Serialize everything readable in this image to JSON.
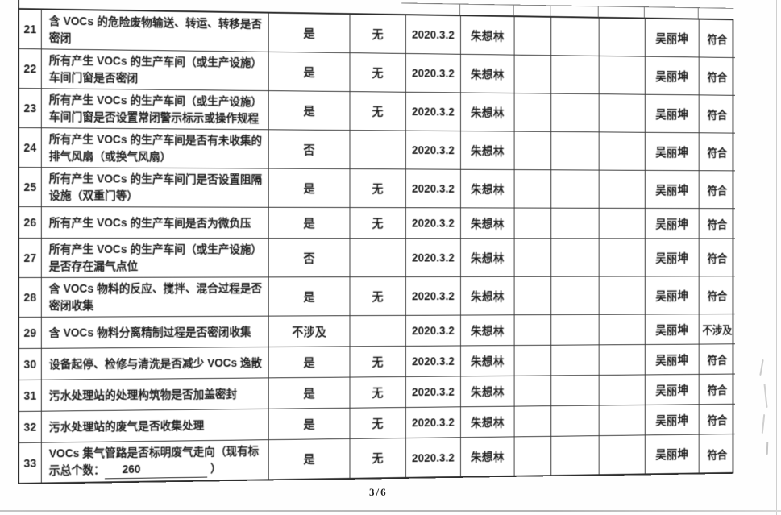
{
  "footer": {
    "page_indicator": "3/6"
  },
  "colors": {
    "paper": "#ffffff",
    "ink": "#1f1f1f",
    "table_line": "#3a3a3a"
  },
  "table": {
    "rows": [
      {
        "no": "21",
        "question": "含 VOCs 的危险废物输送、转运、转移是否密闭",
        "self_check": "是",
        "problem": "无",
        "date": "2020.3.2",
        "checker": "朱想林",
        "extra1": "",
        "extra2": "",
        "extra3": "",
        "reviewer": "吴丽坤",
        "conclusion": "符合"
      },
      {
        "no": "22",
        "question": "所有产生 VOCs 的生产车间（或生产设施）车间门窗是否密闭",
        "self_check": "是",
        "problem": "无",
        "date": "2020.3.2",
        "checker": "朱想林",
        "extra1": "",
        "extra2": "",
        "extra3": "",
        "reviewer": "吴丽坤",
        "conclusion": "符合"
      },
      {
        "no": "23",
        "question": "所有产生 VOCs 的生产车间（或生产设施）车间门窗是否设置常闭警示标示或操作规程",
        "self_check": "是",
        "problem": "无",
        "date": "2020.3.2",
        "checker": "朱想林",
        "extra1": "",
        "extra2": "",
        "extra3": "",
        "reviewer": "吴丽坤",
        "conclusion": "符合"
      },
      {
        "no": "24",
        "question": "所有产生 VOCs 的生产车间是否有未收集的排气风扇（或换气风扇）",
        "self_check": "否",
        "problem": "",
        "date": "2020.3.2",
        "checker": "朱想林",
        "extra1": "",
        "extra2": "",
        "extra3": "",
        "reviewer": "吴丽坤",
        "conclusion": "符合"
      },
      {
        "no": "25",
        "question": "所有产生 VOCs 的生产车间门是否设置阻隔设施（双重门等）",
        "self_check": "是",
        "problem": "无",
        "date": "2020.3.2",
        "checker": "朱想林",
        "extra1": "",
        "extra2": "",
        "extra3": "",
        "reviewer": "吴丽坤",
        "conclusion": "符合"
      },
      {
        "no": "26",
        "question": "所有产生 VOCs 的生产车间是否为微负压",
        "self_check": "是",
        "problem": "无",
        "date": "2020.3.2",
        "checker": "朱想林",
        "extra1": "",
        "extra2": "",
        "extra3": "",
        "reviewer": "吴丽坤",
        "conclusion": "符合"
      },
      {
        "no": "27",
        "question": "所有产生 VOCs 的生产车间（或生产设施）是否存在漏气点位",
        "self_check": "否",
        "problem": "",
        "date": "2020.3.2",
        "checker": "朱想林",
        "extra1": "",
        "extra2": "",
        "extra3": "",
        "reviewer": "吴丽坤",
        "conclusion": "符合"
      },
      {
        "no": "28",
        "question": "含 VOCs 物料的反应、搅拌、混合过程是否密闭收集",
        "self_check": "是",
        "problem": "无",
        "date": "2020.3.2",
        "checker": "朱想林",
        "extra1": "",
        "extra2": "",
        "extra3": "",
        "reviewer": "吴丽坤",
        "conclusion": "符合"
      },
      {
        "no": "29",
        "question": "含 VOCs 物料分离精制过程是否密闭收集",
        "self_check": "不涉及",
        "problem": "",
        "date": "2020.3.2",
        "checker": "朱想林",
        "extra1": "",
        "extra2": "",
        "extra3": "",
        "reviewer": "吴丽坤",
        "conclusion": "不涉及"
      },
      {
        "no": "30",
        "question": "设备起停、检修与清洗是否减少 VOCs 逸散",
        "self_check": "是",
        "problem": "无",
        "date": "2020.3.2",
        "checker": "朱想林",
        "extra1": "",
        "extra2": "",
        "extra3": "",
        "reviewer": "吴丽坤",
        "conclusion": "符合"
      },
      {
        "no": "31",
        "question": "污水处理站的处理构筑物是否加盖密封",
        "self_check": "是",
        "problem": "无",
        "date": "2020.3.2",
        "checker": "朱想林",
        "extra1": "",
        "extra2": "",
        "extra3": "",
        "reviewer": "吴丽坤",
        "conclusion": "符合"
      },
      {
        "no": "32",
        "question": "污水处理站的废气是否收集处理",
        "self_check": "是",
        "problem": "无",
        "date": "2020.3.2",
        "checker": "朱想林",
        "extra1": "",
        "extra2": "",
        "extra3": "",
        "reviewer": "吴丽坤",
        "conclusion": "符合"
      },
      {
        "no": "33",
        "question_prefix": "VOCs 集气管路是否标明废气走向（现有标示总个数：",
        "blank_value": "260",
        "question_suffix": "）",
        "self_check": "是",
        "problem": "无",
        "date": "2020.3.2",
        "checker": "朱想林",
        "extra1": "",
        "extra2": "",
        "extra3": "",
        "reviewer": "吴丽坤",
        "conclusion": "符合"
      }
    ]
  }
}
